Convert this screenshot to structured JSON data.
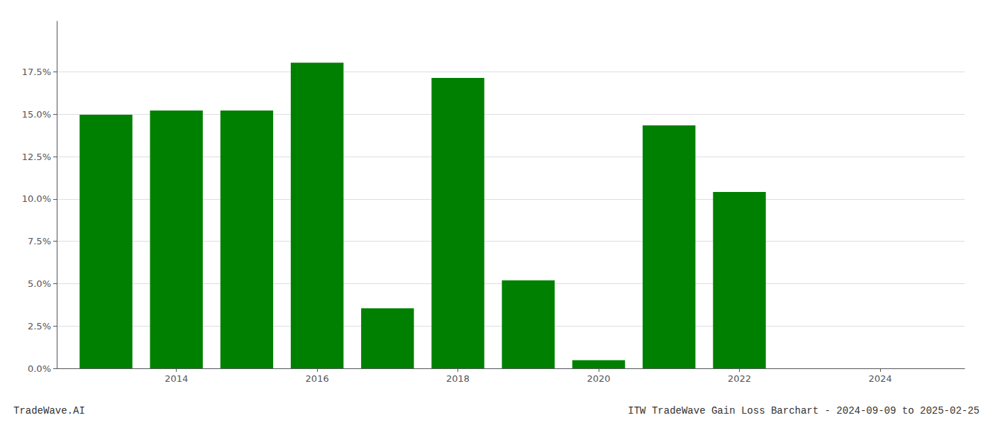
{
  "chart_data": {
    "type": "bar",
    "x": [
      2013,
      2014,
      2015,
      2016,
      2017,
      2018,
      2019,
      2020,
      2021,
      2022,
      2023
    ],
    "values": [
      0.1498,
      0.1523,
      0.1523,
      0.1805,
      0.0355,
      0.1715,
      0.052,
      0.0048,
      0.1435,
      0.1042,
      0.0
    ],
    "color": "#008000",
    "xlim": [
      2012.3,
      2025.2
    ],
    "xticks": [
      2014,
      2016,
      2018,
      2020,
      2022,
      2024
    ],
    "ylim": [
      0,
      0.205
    ],
    "yticks": [
      {
        "value": 0.0,
        "label": "0.0%"
      },
      {
        "value": 0.025,
        "label": "2.5%"
      },
      {
        "value": 0.05,
        "label": "5.0%"
      },
      {
        "value": 0.075,
        "label": "7.5%"
      },
      {
        "value": 0.1,
        "label": "10.0%"
      },
      {
        "value": 0.125,
        "label": "12.5%"
      },
      {
        "value": 0.15,
        "label": "15.0%"
      },
      {
        "value": 0.175,
        "label": "17.5%"
      }
    ],
    "grid": true,
    "annotations": [
      "TradeWave.AI",
      "ITW TradeWave Gain Loss Barchart - 2024-09-09 to 2025-02-25"
    ]
  }
}
